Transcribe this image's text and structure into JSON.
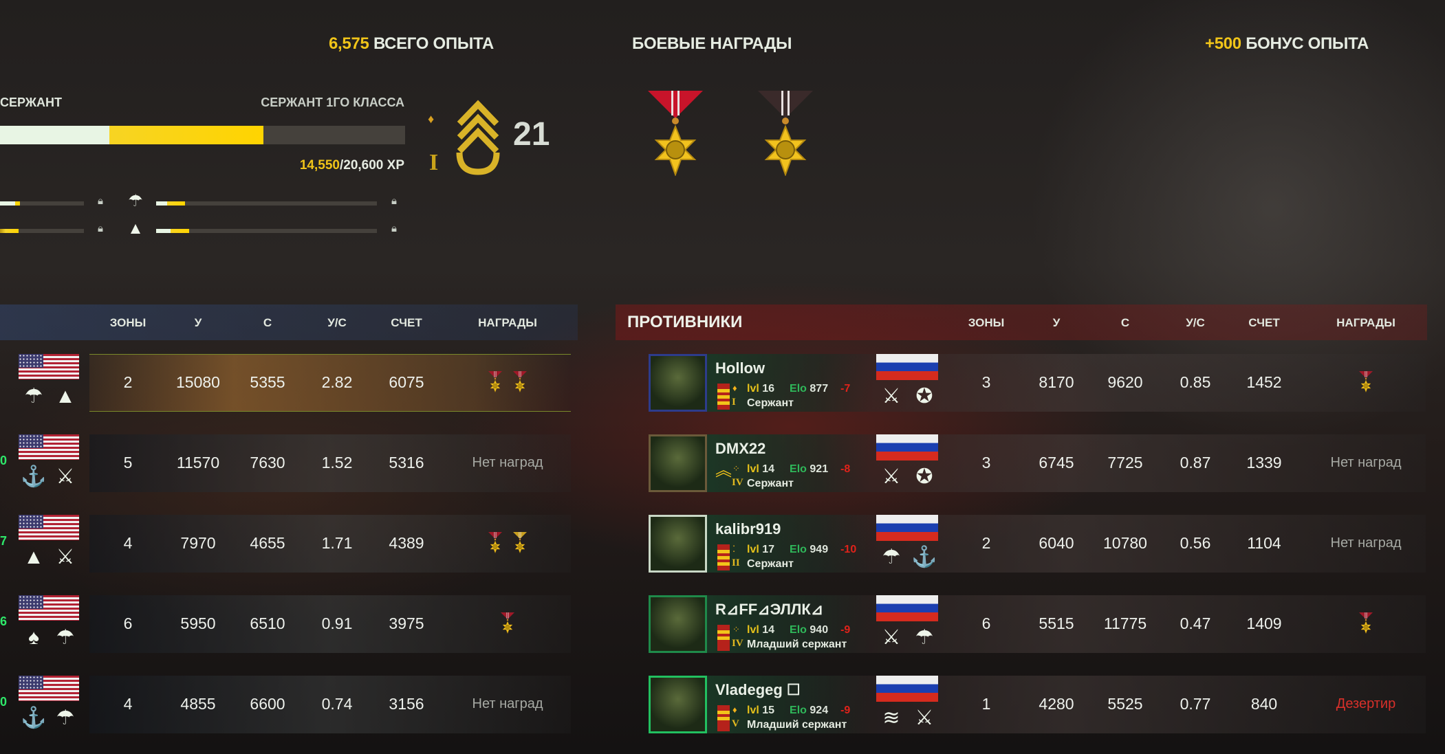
{
  "summary": {
    "total_xp_value": "6,575",
    "total_xp_label": "ВСЕГО ОПЫТА",
    "combat_awards_title": "БОЕВЫЕ НАГРАДЫ",
    "bonus_xp_value": "+500",
    "bonus_xp_label": "БОНУС ОПЫТА"
  },
  "rank_progress": {
    "current_rank": "СЕРЖАНТ",
    "next_rank": "СЕРЖАНТ 1ГО КЛАССА",
    "xp_current": "14,550",
    "xp_total": "/20,600 XP",
    "bar_previous_fraction": 0.27,
    "bar_gained_fraction": 0.65,
    "rank_number": "21",
    "rank_numeral": "I",
    "insignia": "sergeant-first-class-chevron-icon"
  },
  "combat_awards": [
    {
      "icon": "scales-star-medal-icon",
      "ribbon": "#c8142a"
    },
    {
      "icon": "skull-star-medal-icon",
      "ribbon": "#3a2a2a"
    }
  ],
  "branch_progress": [
    {
      "left_white": 0.18,
      "left_gold": 0.24,
      "icon": "paratrooper-badge-icon",
      "right_white": 0.05,
      "right_gold": 0.13
    },
    {
      "left_white": 0.0,
      "left_gold": 0.22,
      "icon": "artillery-badge-icon",
      "right_white": 0.065,
      "right_gold": 0.15
    }
  ],
  "columns": [
    "ЗОНЫ",
    "У",
    "С",
    "У/С",
    "СЧЕТ",
    "НАГРАДЫ"
  ],
  "enemies_title": "ПРОТИВНИКИ",
  "allies": [
    {
      "edge": "",
      "badges": [
        "paratrooper-badge-icon",
        "artillery-badge-icon"
      ],
      "zones": "2",
      "kills": "15080",
      "deaths": "5355",
      "kd": "2.82",
      "score": "6075",
      "awards": [
        "medal",
        "medal"
      ],
      "awards_text": "",
      "highlight": true
    },
    {
      "edge": "0",
      "badges": [
        "marines-badge-icon",
        "cavalry-badge-icon"
      ],
      "zones": "5",
      "kills": "11570",
      "deaths": "7630",
      "kd": "1.52",
      "score": "5316",
      "awards": [],
      "awards_text": "Нет наград"
    },
    {
      "edge": "7",
      "badges": [
        "artillery-badge-icon",
        "cavalry-badge-icon"
      ],
      "zones": "4",
      "kills": "7970",
      "deaths": "4655",
      "kd": "1.71",
      "score": "4389",
      "awards": [
        "medal",
        "tank-medal"
      ],
      "awards_text": ""
    },
    {
      "edge": "6",
      "badges": [
        "special-forces-badge-icon",
        "paratrooper-badge-icon"
      ],
      "zones": "6",
      "kills": "5950",
      "deaths": "6510",
      "kd": "0.91",
      "score": "3975",
      "awards": [
        "medal"
      ],
      "awards_text": ""
    },
    {
      "edge": "0",
      "badges": [
        "marines-badge-icon",
        "paratrooper-badge-icon"
      ],
      "zones": "4",
      "kills": "4855",
      "deaths": "6600",
      "kd": "0.74",
      "score": "3156",
      "awards": [],
      "awards_text": "Нет наград"
    }
  ],
  "enemies": [
    {
      "name": "Hollow",
      "avatar_border": "#2d3c8c",
      "insignia": "strap-3",
      "pips": "♦",
      "numeral": "I",
      "lvl_label": "lvl",
      "lvl": "16",
      "elo_label": "Elo",
      "elo": "877",
      "delta": "-7",
      "rank": "Сержант",
      "badges": [
        "motor-rifle-badge-icon",
        "tank-badge-icon"
      ],
      "zones": "3",
      "kills": "8170",
      "deaths": "9620",
      "kd": "0.85",
      "score": "1452",
      "awards": [
        "medal"
      ],
      "awards_text": ""
    },
    {
      "name": "DMX22",
      "avatar_border": "#6b5a3a",
      "insignia": "chevron",
      "pips": "⁘",
      "numeral": "IV",
      "lvl_label": "lvl",
      "lvl": "14",
      "elo_label": "Elo",
      "elo": "921",
      "delta": "-8",
      "rank": "Сержант",
      "badges": [
        "motor-rifle-badge-icon",
        "tank-badge-icon"
      ],
      "zones": "3",
      "kills": "6745",
      "deaths": "7725",
      "kd": "0.87",
      "score": "1339",
      "awards": [],
      "awards_text": "Нет наград"
    },
    {
      "name": "kalibr919",
      "avatar_border": "#c9d8c6",
      "insignia": "strap-3",
      "pips": "⁚",
      "numeral": "II",
      "lvl_label": "lvl",
      "lvl": "17",
      "elo_label": "Elo",
      "elo": "949",
      "delta": "-10",
      "rank": "Сержант",
      "badges": [
        "airborne-badge-icon",
        "naval-anchor-badge-icon"
      ],
      "zones": "2",
      "kills": "6040",
      "deaths": "10780",
      "kd": "0.56",
      "score": "1104",
      "awards": [],
      "awards_text": "Нет наград"
    },
    {
      "name": "R⊿FF⊿ЭЛЛК⊿",
      "avatar_border": "#1f8a4a",
      "insignia": "strap-2",
      "pips": "⁘",
      "numeral": "IV",
      "lvl_label": "lvl",
      "lvl": "14",
      "elo_label": "Elo",
      "elo": "940",
      "delta": "-9",
      "rank": "Младший сержант",
      "badges": [
        "motor-rifle-badge-icon",
        "airborne-badge-icon"
      ],
      "zones": "6",
      "kills": "5515",
      "deaths": "11775",
      "kd": "0.47",
      "score": "1409",
      "awards": [
        "medal"
      ],
      "awards_text": ""
    },
    {
      "name": "Vladegeg ☐",
      "avatar_border": "#22c060",
      "insignia": "strap-2",
      "pips": "♦",
      "numeral": "V",
      "lvl_label": "lvl",
      "lvl": "15",
      "elo_label": "Elo",
      "elo": "924",
      "delta": "-9",
      "rank": "Младший сержант",
      "badges": [
        "naval-badge-icon",
        "motor-rifle-badge-icon"
      ],
      "zones": "1",
      "kills": "4280",
      "deaths": "5525",
      "kd": "0.77",
      "score": "840",
      "awards": [],
      "awards_text": "Дезертир",
      "awards_status": "deserter"
    }
  ],
  "colors": {
    "gold": "#f0c419",
    "elo": "#2fb85a",
    "delta": "#e0221a",
    "deserter": "#d8302a"
  }
}
